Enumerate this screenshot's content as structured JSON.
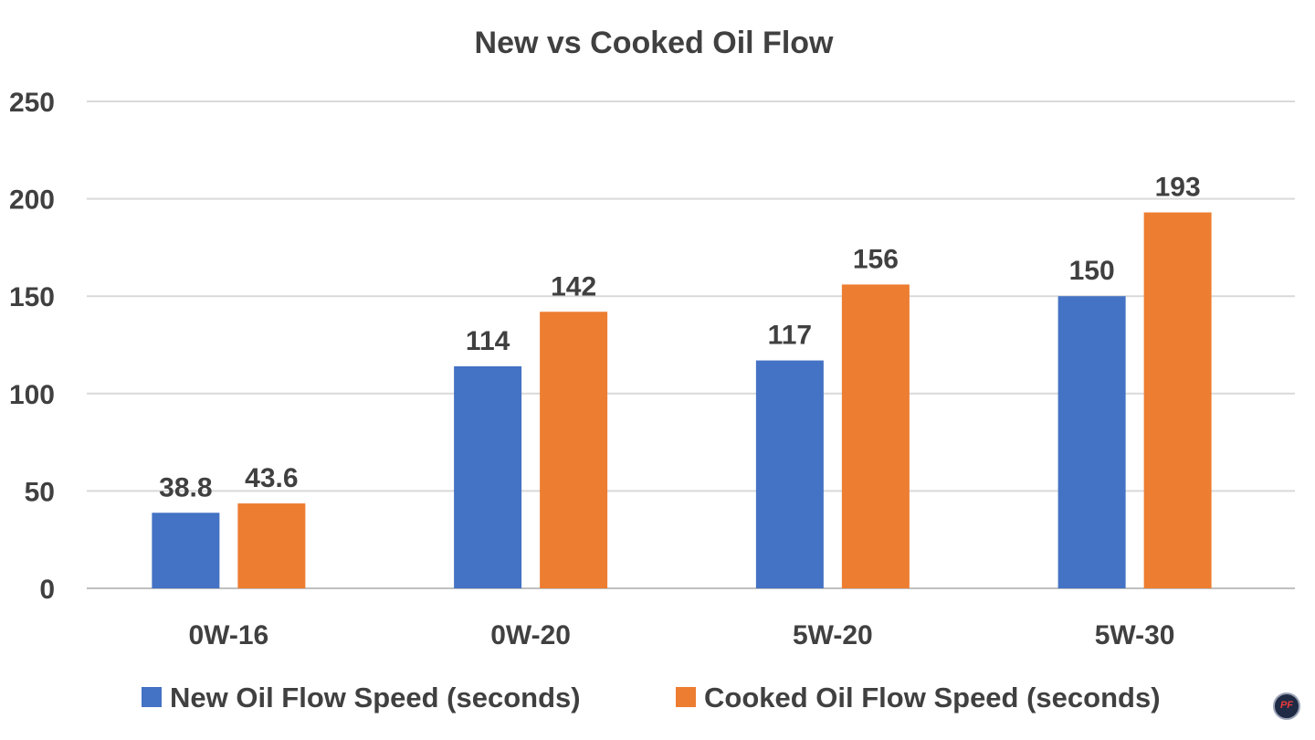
{
  "chart_data": {
    "type": "bar",
    "title": "New vs Cooked Oil Flow",
    "categories": [
      "0W-16",
      "0W-20",
      "5W-20",
      "5W-30"
    ],
    "series": [
      {
        "name": "New Oil Flow Speed (seconds)",
        "color": "#4472C4",
        "values": [
          38.8,
          114,
          117,
          150
        ],
        "labels": [
          "38.8",
          "114",
          "117",
          "150"
        ]
      },
      {
        "name": "Cooked Oil Flow Speed (seconds)",
        "color": "#ED7D31",
        "values": [
          43.6,
          142,
          156,
          193
        ],
        "labels": [
          "43.6",
          "142",
          "156",
          "193"
        ]
      }
    ],
    "ylim": [
      0,
      250
    ],
    "yticks": [
      0,
      50,
      100,
      150,
      200,
      250
    ],
    "ytick_labels": [
      "0",
      "50",
      "100",
      "150",
      "200",
      "250"
    ],
    "grid": true,
    "legend_position": "bottom"
  },
  "watermark": {
    "text": "PF"
  }
}
